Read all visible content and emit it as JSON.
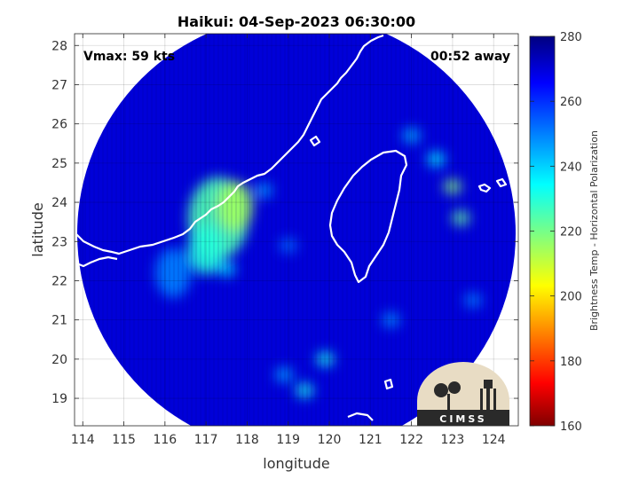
{
  "chart_data": {
    "type": "heatmap",
    "title": "Haikui: 04-Sep-2023 06:30:00",
    "xlabel": "longitude",
    "ylabel": "latitude",
    "xlim": [
      113.8,
      124.6
    ],
    "ylim": [
      18.3,
      28.3
    ],
    "xticks": [
      114,
      115,
      116,
      117,
      118,
      119,
      120,
      121,
      122,
      123,
      124
    ],
    "yticks": [
      19,
      20,
      21,
      22,
      23,
      24,
      25,
      26,
      27,
      28
    ],
    "grid": true,
    "annotations": {
      "vmax": "Vmax: 59 kts",
      "time_away": "00:52 away"
    },
    "colorbar": {
      "label": "Brightness Temp - Horizontal Polarization",
      "range": [
        160,
        280
      ],
      "ticks": [
        160,
        180,
        200,
        220,
        240,
        260,
        280
      ],
      "colormap": "jet"
    },
    "swath": {
      "center_lon": 119.2,
      "center_lat": 23.2,
      "shape": "circular",
      "background_value": 270
    },
    "cold_features": [
      {
        "lon": 117.3,
        "lat": 23.6,
        "value": 225,
        "extent": "large"
      },
      {
        "lon": 117.7,
        "lat": 23.9,
        "value": 215,
        "extent": "medium"
      },
      {
        "lon": 117.0,
        "lat": 22.8,
        "value": 230,
        "extent": "medium"
      },
      {
        "lon": 117.5,
        "lat": 22.3,
        "value": 238,
        "extent": "small"
      },
      {
        "lon": 116.2,
        "lat": 22.2,
        "value": 250,
        "extent": "medium"
      },
      {
        "lon": 119.0,
        "lat": 22.9,
        "value": 252,
        "extent": "small"
      },
      {
        "lon": 118.4,
        "lat": 24.3,
        "value": 246,
        "extent": "small"
      },
      {
        "lon": 123.0,
        "lat": 24.4,
        "value": 218,
        "extent": "small"
      },
      {
        "lon": 123.2,
        "lat": 23.6,
        "value": 222,
        "extent": "small"
      },
      {
        "lon": 122.6,
        "lat": 25.1,
        "value": 235,
        "extent": "small"
      },
      {
        "lon": 122.0,
        "lat": 25.7,
        "value": 243,
        "extent": "small"
      },
      {
        "lon": 119.9,
        "lat": 20.0,
        "value": 232,
        "extent": "small"
      },
      {
        "lon": 119.4,
        "lat": 19.2,
        "value": 232,
        "extent": "small"
      },
      {
        "lon": 118.9,
        "lat": 19.6,
        "value": 245,
        "extent": "small"
      },
      {
        "lon": 121.5,
        "lat": 21.0,
        "value": 248,
        "extent": "small"
      },
      {
        "lon": 123.5,
        "lat": 21.5,
        "value": 250,
        "extent": "small"
      }
    ],
    "logo": "CIMSS"
  }
}
